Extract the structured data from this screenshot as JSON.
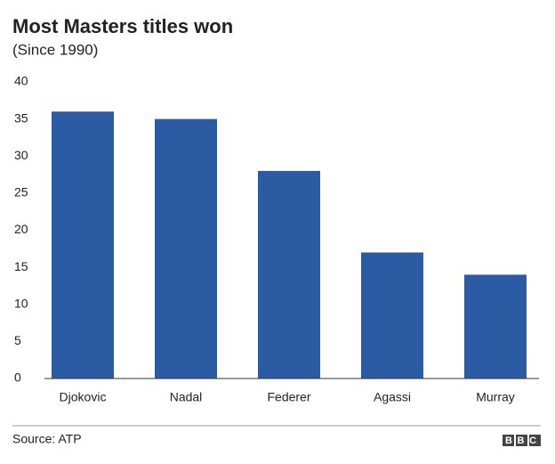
{
  "chart_data": {
    "type": "bar",
    "title": "Most Masters titles won",
    "subtitle": "(Since 1990)",
    "categories": [
      "Djokovic",
      "Nadal",
      "Federer",
      "Agassi",
      "Murray"
    ],
    "values": [
      36,
      35,
      28,
      17,
      14
    ],
    "color": "#2b5ca3",
    "ylim": [
      0,
      40
    ],
    "yticks": [
      0,
      5,
      10,
      15,
      20,
      25,
      30,
      35,
      40
    ],
    "grid": false,
    "source": "Source: ATP",
    "logo": "BBC"
  }
}
